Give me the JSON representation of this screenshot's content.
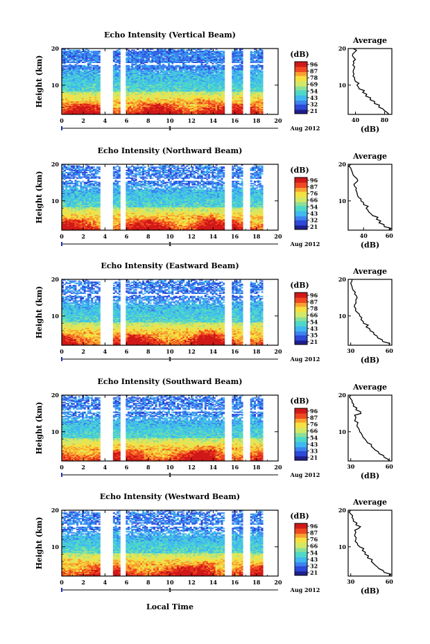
{
  "figure": {
    "xlabel": "Local Time",
    "date_label": "Aug 2012",
    "day_marker": "1",
    "ylabel": "Height (km)",
    "colorbar_unit": "(dB)",
    "average_title": "Average",
    "average_xlabel": "(dB)",
    "colormap": [
      "#1e1e8c",
      "#2c48d8",
      "#3c82f0",
      "#40b8f0",
      "#4ed8c8",
      "#8ce098",
      "#d4e868",
      "#f6e040",
      "#f8a030",
      "#f04820",
      "#d01818"
    ]
  },
  "chart_data": [
    {
      "type": "heatmap",
      "title": "Echo Intensity (Vertical Beam)",
      "xlabel": "",
      "ylabel": "Height (km)",
      "x_range": [
        0,
        20
      ],
      "x_ticks": [
        "0",
        "2",
        "4",
        "6",
        "8",
        "10",
        "12",
        "14",
        "16",
        "18",
        "20"
      ],
      "y_range": [
        2,
        20
      ],
      "y_ticks": [
        "10",
        "20"
      ],
      "colorbar_ticks": [
        "96",
        "87",
        "78",
        "69",
        "54",
        "43",
        "32",
        "21"
      ],
      "color_range": [
        21,
        96
      ],
      "data_gaps_hours": [
        [
          3.6,
          4.7
        ],
        [
          5.5,
          5.8
        ],
        [
          15.1,
          15.7
        ],
        [
          16.9,
          17.3
        ]
      ],
      "valid_time_hours": [
        0,
        18.6
      ],
      "strong_layer_km": [
        2,
        7
      ],
      "average_profile": {
        "title": "Average",
        "xlabel": "(dB)",
        "x_ticks": [
          "40",
          "80"
        ],
        "x_range": [
          30,
          90
        ],
        "y_ticks": [
          "10",
          "20"
        ],
        "y_range": [
          2,
          20
        ],
        "height_km": [
          2,
          3,
          4,
          5,
          6,
          7,
          8,
          9,
          10,
          11,
          12,
          13,
          14,
          15,
          16,
          17,
          18,
          19,
          20
        ],
        "db": [
          86,
          80,
          72,
          66,
          60,
          54,
          50,
          45,
          42,
          40,
          39,
          38,
          37,
          39,
          38,
          40,
          36,
          39,
          37
        ]
      }
    },
    {
      "type": "heatmap",
      "title": "Echo Intensity (Northward Beam)",
      "xlabel": "",
      "ylabel": "Height (km)",
      "x_range": [
        0,
        20
      ],
      "x_ticks": [
        "0",
        "2",
        "4",
        "6",
        "8",
        "10",
        "12",
        "14",
        "16",
        "18",
        "20"
      ],
      "y_range": [
        2,
        20
      ],
      "y_ticks": [
        "10",
        "20"
      ],
      "colorbar_ticks": [
        "96",
        "87",
        "76",
        "66",
        "54",
        "43",
        "32",
        "21"
      ],
      "color_range": [
        21,
        96
      ],
      "data_gaps_hours": [
        [
          3.6,
          4.7
        ],
        [
          5.5,
          5.8
        ],
        [
          15.1,
          15.7
        ],
        [
          16.9,
          17.3
        ]
      ],
      "valid_time_hours": [
        0,
        18.6
      ],
      "strong_layer_km": [
        2,
        6
      ],
      "average_profile": {
        "title": "Average",
        "xlabel": "(dB)",
        "x_ticks": [
          "40",
          "60"
        ],
        "x_range": [
          28,
          62
        ],
        "y_ticks": [
          "10",
          "20"
        ],
        "y_range": [
          2,
          20
        ],
        "height_km": [
          2,
          3,
          4,
          5,
          6,
          7,
          8,
          9,
          10,
          11,
          12,
          13,
          14,
          15,
          16,
          17,
          18,
          19,
          20
        ],
        "db": [
          60,
          56,
          52,
          50,
          47,
          44,
          42,
          40,
          38,
          36,
          35,
          34,
          33,
          34,
          35,
          32,
          31,
          30,
          30
        ]
      }
    },
    {
      "type": "heatmap",
      "title": "Echo Intensity (Eastward Beam)",
      "xlabel": "",
      "ylabel": "Height (km)",
      "x_range": [
        0,
        20
      ],
      "x_ticks": [
        "0",
        "2",
        "4",
        "6",
        "8",
        "10",
        "12",
        "14",
        "16",
        "18",
        "20"
      ],
      "y_range": [
        2,
        20
      ],
      "y_ticks": [
        "10",
        "20"
      ],
      "colorbar_ticks": [
        "96",
        "87",
        "78",
        "66",
        "54",
        "43",
        "35",
        "21"
      ],
      "color_range": [
        21,
        96
      ],
      "data_gaps_hours": [
        [
          3.6,
          4.7
        ],
        [
          5.5,
          5.8
        ],
        [
          15.1,
          15.7
        ],
        [
          16.9,
          17.3
        ]
      ],
      "valid_time_hours": [
        0,
        18.6
      ],
      "strong_layer_km": [
        2,
        6
      ],
      "average_profile": {
        "title": "Average",
        "xlabel": "(dB)",
        "x_ticks": [
          "30",
          "60"
        ],
        "x_range": [
          28,
          62
        ],
        "y_ticks": [
          "10",
          "20"
        ],
        "y_range": [
          2,
          20
        ],
        "height_km": [
          2,
          3,
          4,
          5,
          6,
          7,
          8,
          9,
          10,
          11,
          12,
          13,
          14,
          15,
          16,
          17,
          18,
          19,
          20
        ],
        "db": [
          60,
          55,
          51,
          48,
          45,
          42,
          40,
          38,
          37,
          35,
          34,
          33,
          34,
          35,
          33,
          32,
          31,
          30,
          31
        ]
      }
    },
    {
      "type": "heatmap",
      "title": "Echo Intensity (Southward Beam)",
      "xlabel": "",
      "ylabel": "Height (km)",
      "x_range": [
        0,
        20
      ],
      "x_ticks": [
        "0",
        "2",
        "4",
        "6",
        "8",
        "10",
        "12",
        "14",
        "16",
        "18",
        "20"
      ],
      "y_range": [
        2,
        20
      ],
      "y_ticks": [
        "10",
        "20"
      ],
      "colorbar_ticks": [
        "96",
        "87",
        "76",
        "66",
        "54",
        "43",
        "33",
        "21"
      ],
      "color_range": [
        21,
        96
      ],
      "data_gaps_hours": [
        [
          3.6,
          4.7
        ],
        [
          5.5,
          5.8
        ],
        [
          15.1,
          15.7
        ],
        [
          16.9,
          17.3
        ]
      ],
      "valid_time_hours": [
        0,
        18.6
      ],
      "strong_layer_km": [
        2,
        6
      ],
      "average_profile": {
        "title": "Average",
        "xlabel": "(dB)",
        "x_ticks": [
          "30",
          "60"
        ],
        "x_range": [
          28,
          62
        ],
        "y_ticks": [
          "10",
          "20"
        ],
        "y_range": [
          2,
          20
        ],
        "height_km": [
          2,
          3,
          4,
          5,
          6,
          7,
          8,
          9,
          10,
          11,
          12,
          13,
          14,
          15,
          16,
          17,
          18,
          19,
          20
        ],
        "db": [
          60,
          56,
          52,
          49,
          46,
          43,
          41,
          39,
          37,
          36,
          35,
          33,
          34,
          38,
          34,
          32,
          31,
          30,
          30
        ]
      }
    },
    {
      "type": "heatmap",
      "title": "Echo Intensity (Westward Beam)",
      "xlabel": "Local Time",
      "ylabel": "Height (km)",
      "x_range": [
        0,
        20
      ],
      "x_ticks": [
        "0",
        "2",
        "4",
        "6",
        "8",
        "10",
        "12",
        "14",
        "16",
        "18",
        "20"
      ],
      "y_range": [
        2,
        20
      ],
      "y_ticks": [
        "10",
        "20"
      ],
      "colorbar_ticks": [
        "96",
        "87",
        "76",
        "66",
        "54",
        "43",
        "32",
        "21"
      ],
      "color_range": [
        21,
        96
      ],
      "data_gaps_hours": [
        [
          3.6,
          4.7
        ],
        [
          5.5,
          5.8
        ],
        [
          15.1,
          15.7
        ],
        [
          16.9,
          17.3
        ]
      ],
      "valid_time_hours": [
        0,
        18.6
      ],
      "strong_layer_km": [
        2,
        6
      ],
      "average_profile": {
        "title": "Average",
        "xlabel": "(dB)",
        "x_ticks": [
          "30",
          "60"
        ],
        "x_range": [
          28,
          62
        ],
        "y_ticks": [
          "10",
          "20"
        ],
        "y_range": [
          2,
          20
        ],
        "height_km": [
          2,
          3,
          4,
          5,
          6,
          7,
          8,
          9,
          10,
          11,
          12,
          13,
          14,
          15,
          16,
          17,
          18,
          19,
          20
        ],
        "db": [
          60,
          56,
          52,
          49,
          46,
          43,
          41,
          39,
          37,
          35,
          34,
          33,
          34,
          36,
          34,
          32,
          31,
          30,
          30
        ]
      }
    }
  ]
}
